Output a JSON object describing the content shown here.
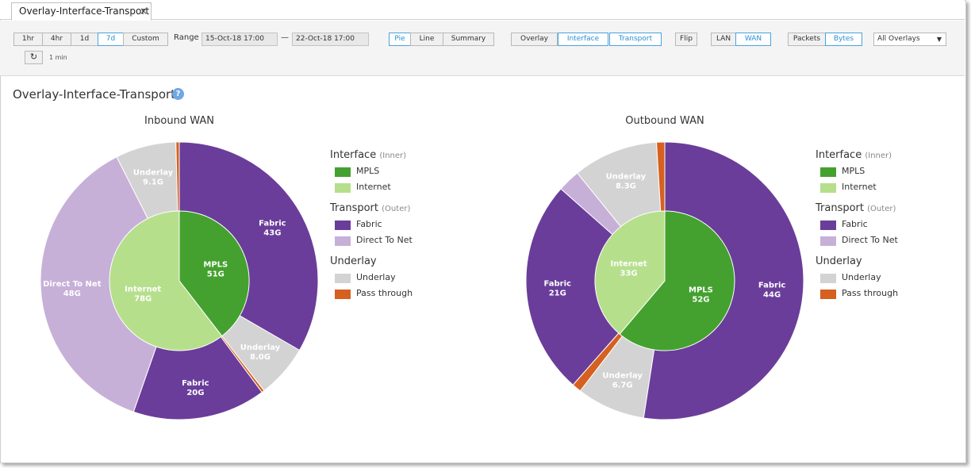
{
  "tab": {
    "title": "Overlay-Interface-Transport",
    "close": "×"
  },
  "toolbar": {
    "time_buttons": [
      "1hr",
      "4hr",
      "1d",
      "7d",
      "Custom"
    ],
    "time_active": "7d",
    "range_label": "Range",
    "range_start": "15-Oct-18 17:00",
    "range_sep": "—",
    "range_end": "22-Oct-18 17:00",
    "view_buttons": [
      "Pie",
      "Line",
      "Summary"
    ],
    "view_active": "Pie",
    "layer_buttons": [
      "Overlay",
      "Interface",
      "Transport"
    ],
    "layer_active": [
      "Interface",
      "Transport"
    ],
    "flip": "Flip",
    "network_buttons": [
      "LAN",
      "WAN"
    ],
    "network_active": "WAN",
    "unit_buttons": [
      "Packets",
      "Bytes"
    ],
    "unit_active": "Bytes",
    "overlay_select": "All Overlays",
    "refresh_icon": "refresh-icon",
    "interval": "1 min"
  },
  "page": {
    "title": "Overlay-Interface-Transport",
    "help": "?"
  },
  "colors": {
    "mpls": "#44a12f",
    "internet": "#b6df8c",
    "fabric": "#6a3d9a",
    "direct_to_net": "#c7b0d8",
    "underlay": "#d3d3d3",
    "pass_through": "#d5601f"
  },
  "legend": {
    "interface_title": "Interface",
    "interface_sub": "(Inner)",
    "interface_items": [
      "MPLS",
      "Internet"
    ],
    "transport_title": "Transport",
    "transport_sub": "(Outer)",
    "transport_items": [
      "Fabric",
      "Direct To Net"
    ],
    "underlay_title": "Underlay",
    "underlay_items": [
      "Underlay",
      "Pass through"
    ]
  },
  "chart_data": [
    {
      "type": "pie",
      "title": "Inbound WAN",
      "inner": [
        {
          "name": "MPLS",
          "label": "51G",
          "value": 51
        },
        {
          "name": "Internet",
          "label": "78G",
          "value": 78
        }
      ],
      "outer": [
        {
          "name": "Fabric",
          "label": "43G",
          "value": 43
        },
        {
          "name": "Underlay",
          "label": "8.0G",
          "value": 8.0
        },
        {
          "name": "Pass through",
          "label": "",
          "value": 0.4
        },
        {
          "name": "Fabric",
          "label": "20G",
          "value": 20
        },
        {
          "name": "Direct To Net",
          "label": "48G",
          "value": 48
        },
        {
          "name": "Underlay",
          "label": "9.1G",
          "value": 9.1
        },
        {
          "name": "Pass through",
          "label": "",
          "value": 0.5
        }
      ]
    },
    {
      "type": "pie",
      "title": "Outbound WAN",
      "inner": [
        {
          "name": "MPLS",
          "label": "52G",
          "value": 52
        },
        {
          "name": "Internet",
          "label": "33G",
          "value": 33
        }
      ],
      "outer": [
        {
          "name": "Fabric",
          "label": "44G",
          "value": 44
        },
        {
          "name": "Underlay",
          "label": "6.7G",
          "value": 6.7
        },
        {
          "name": "Pass through",
          "label": "",
          "value": 0.9
        },
        {
          "name": "Fabric",
          "label": "21G",
          "value": 21
        },
        {
          "name": "Direct To Net",
          "label": "",
          "value": 2.2
        },
        {
          "name": "Underlay",
          "label": "8.3G",
          "value": 8.3
        },
        {
          "name": "Pass through",
          "label": "",
          "value": 0.8
        }
      ]
    }
  ]
}
